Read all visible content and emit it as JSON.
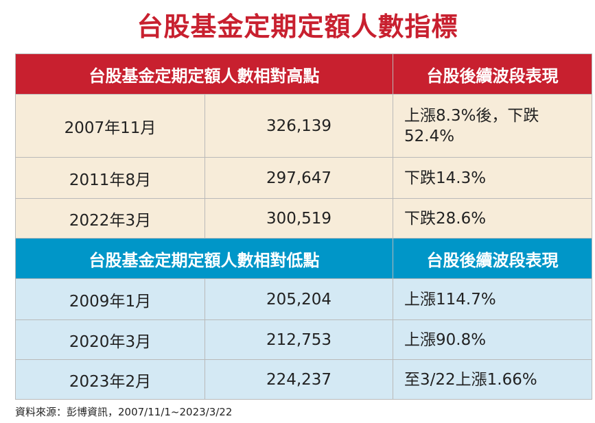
{
  "title": "台股基金定期定額人數指標",
  "sections": [
    {
      "header": [
        "台股基金定期定額人數相對高點",
        "台股後續波段表現"
      ],
      "rows": [
        [
          "2007年11月",
          "326,139",
          "上漲8.3%後，下跌52.4%"
        ],
        [
          "2011年8月",
          "297,647",
          "下跌14.3%"
        ],
        [
          "2022年3月",
          "300,519",
          "下跌28.6%"
        ]
      ]
    },
    {
      "header": [
        "台股基金定期定額人數相對低點",
        "台股後續波段表現"
      ],
      "rows": [
        [
          "2009年1月",
          "205,204",
          "上漲114.7%"
        ],
        [
          "2020年3月",
          "212,753",
          "上漲90.8%"
        ],
        [
          "2023年2月",
          "224,237",
          "至3/22上漲1.66%"
        ]
      ]
    }
  ],
  "source": "資料來源：彭博資訊，2007/11/1~2023/3/22"
}
